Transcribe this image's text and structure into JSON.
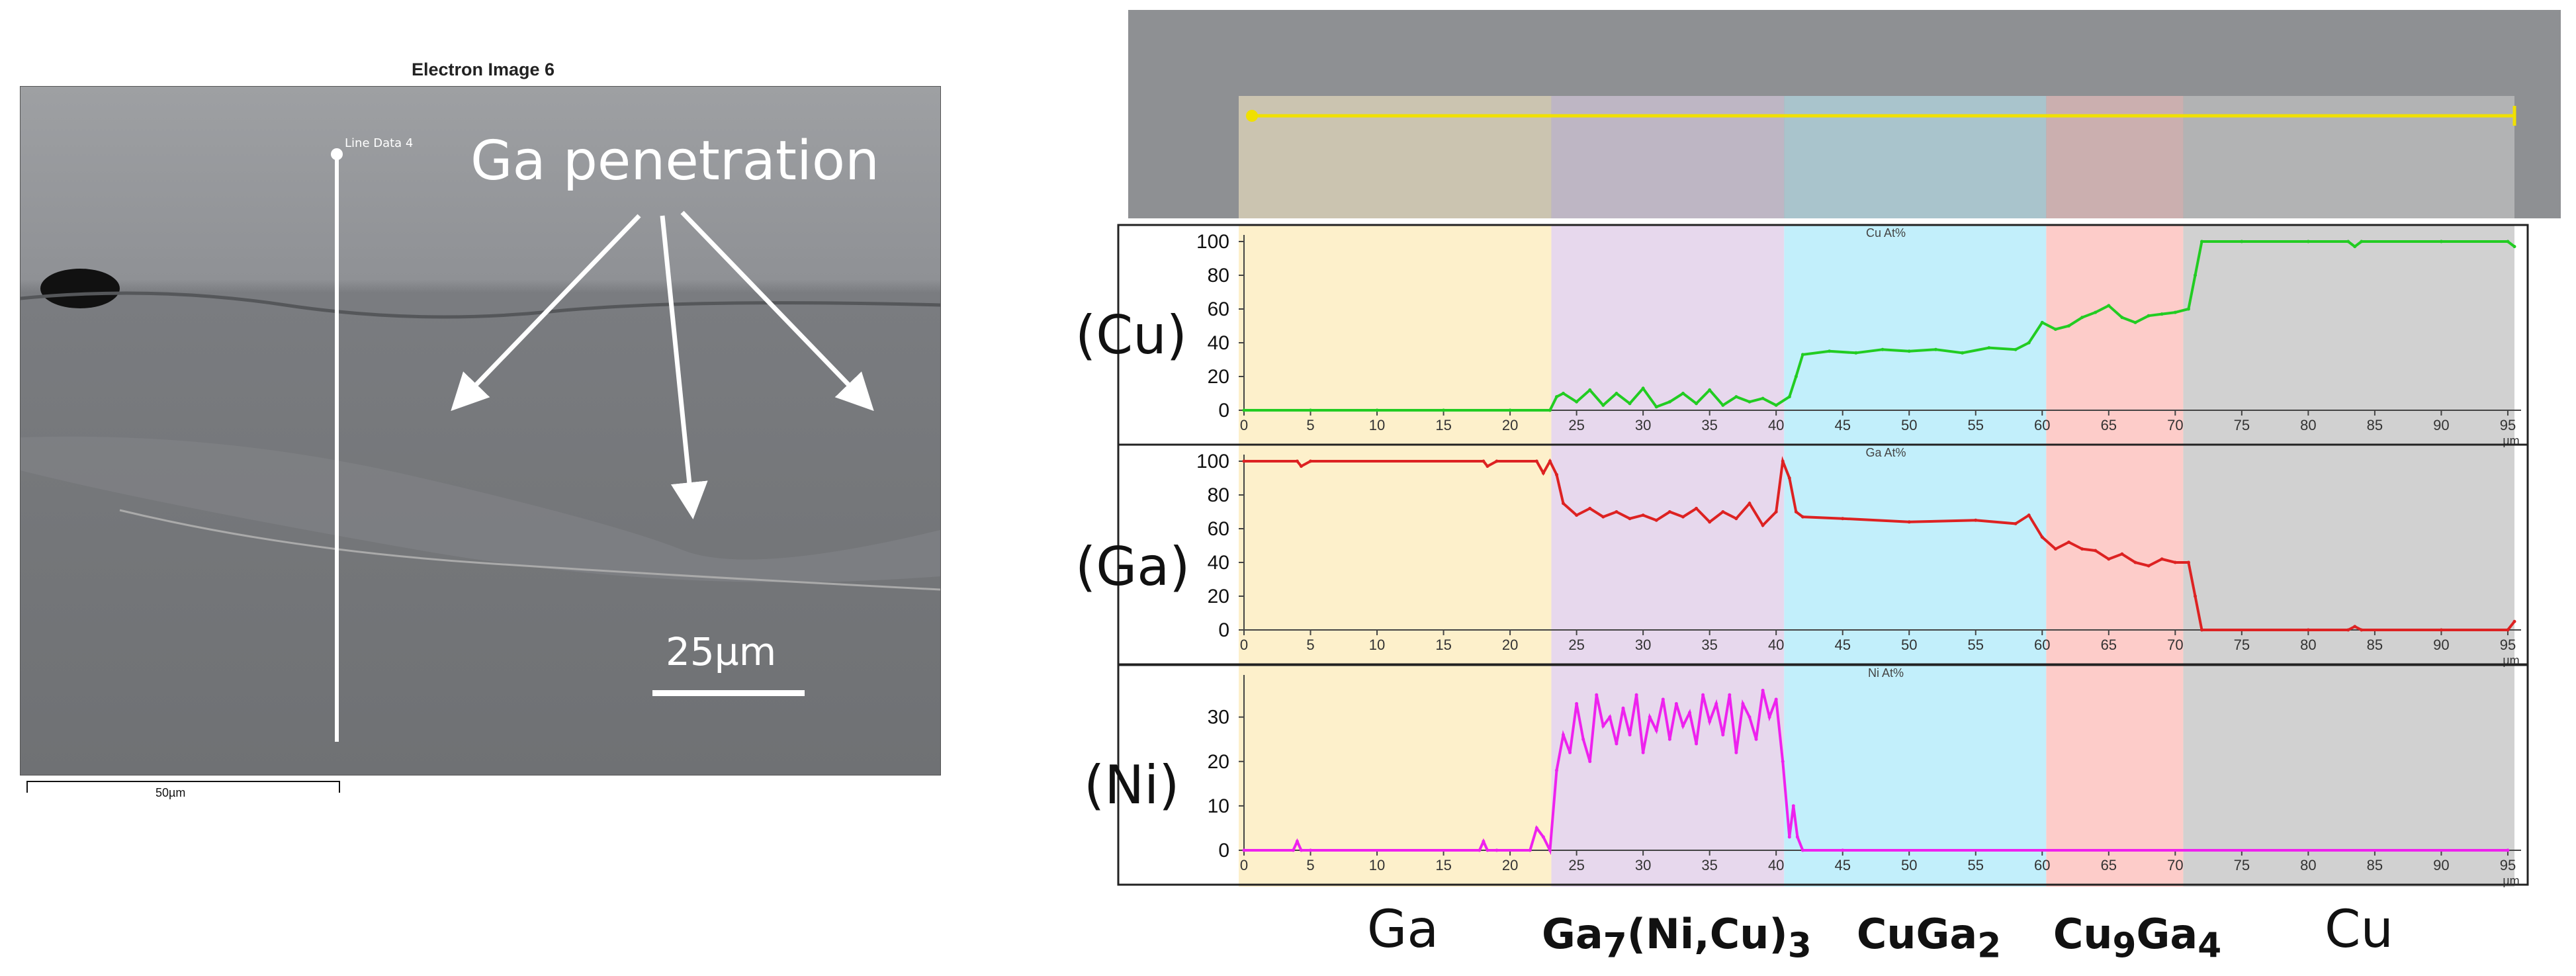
{
  "left_panel": {
    "title": "Electron Image 6",
    "line_label": "Line Data 4",
    "annotation": "Ga penetration",
    "scale_label": "25µm",
    "scale_bar_label": "50µm"
  },
  "phase_labels": [
    "Ga",
    "Ga7(Ni,Cu)3",
    "CuGa2",
    "Cu9Ga4",
    "Cu"
  ],
  "phase_label_parts": [
    {
      "main": "Ga",
      "sub1": "",
      "mid": "",
      "sub2": ""
    },
    {
      "main": "Ga",
      "sub1": "7",
      "mid": "(Ni,Cu)",
      "sub2": "3"
    },
    {
      "main": "CuGa",
      "sub1": "2",
      "mid": "",
      "sub2": ""
    },
    {
      "main": "Cu",
      "sub1": "9",
      "mid": "Ga",
      "sub2": "4"
    },
    {
      "main": "Cu",
      "sub1": "",
      "mid": "",
      "sub2": ""
    }
  ],
  "phase_colors": [
    "#fdefc8",
    "#e6d6ec",
    "#bfeefb",
    "#fdc9c6",
    "#cfcfcf"
  ],
  "phase_boundaries_um": [
    0,
    23.5,
    41,
    60.7,
    71,
    95.5
  ],
  "chart_data": [
    {
      "type": "line",
      "title": "Cu At%",
      "ylabel": "(Cu)",
      "xlabel": "µm",
      "color": "#22cc22",
      "ylim": [
        0,
        100
      ],
      "yticks": [
        0,
        20,
        40,
        60,
        80,
        100
      ],
      "xticks": [
        0,
        5,
        10,
        15,
        20,
        25,
        30,
        35,
        40,
        45,
        50,
        55,
        60,
        65,
        70,
        75,
        80,
        85,
        90,
        95
      ],
      "x": [
        0,
        5,
        10,
        15,
        20,
        23,
        23.5,
        24,
        25,
        26,
        27,
        28,
        29,
        30,
        31,
        32,
        33,
        34,
        35,
        36,
        37,
        38,
        39,
        40,
        41,
        41.5,
        42,
        44,
        46,
        48,
        50,
        52,
        54,
        56,
        58,
        59,
        60,
        61,
        62,
        63,
        64,
        65,
        66,
        67,
        68,
        69,
        70,
        71,
        71.5,
        72,
        75,
        80,
        83,
        83.5,
        84,
        90,
        95,
        95.5
      ],
      "y": [
        0,
        0,
        0,
        0,
        0,
        0,
        8,
        10,
        5,
        12,
        3,
        10,
        4,
        13,
        2,
        5,
        10,
        4,
        12,
        3,
        8,
        5,
        7,
        3,
        8,
        20,
        33,
        35,
        34,
        36,
        35,
        36,
        34,
        37,
        36,
        40,
        52,
        48,
        50,
        55,
        58,
        62,
        55,
        52,
        56,
        57,
        58,
        60,
        80,
        100,
        100,
        100,
        100,
        97,
        100,
        100,
        100,
        97
      ]
    },
    {
      "type": "line",
      "title": "Ga At%",
      "ylabel": "(Ga)",
      "xlabel": "µm",
      "color": "#dd2222",
      "ylim": [
        0,
        100
      ],
      "yticks": [
        0,
        20,
        40,
        60,
        80,
        100
      ],
      "xticks": [
        0,
        5,
        10,
        15,
        20,
        25,
        30,
        35,
        40,
        45,
        50,
        55,
        60,
        65,
        70,
        75,
        80,
        85,
        90,
        95
      ],
      "x": [
        0,
        4,
        4.3,
        5,
        18,
        18.3,
        19,
        22,
        22.5,
        23,
        23.5,
        24,
        25,
        26,
        27,
        28,
        29,
        30,
        31,
        32,
        33,
        34,
        35,
        36,
        37,
        38,
        39,
        40,
        40.5,
        41,
        41.5,
        42,
        45,
        50,
        55,
        58,
        59,
        60,
        61,
        62,
        63,
        64,
        65,
        66,
        67,
        68,
        69,
        70,
        71,
        71.5,
        72,
        80,
        83,
        83.5,
        84,
        90,
        95,
        95.5
      ],
      "y": [
        100,
        100,
        97,
        100,
        100,
        97,
        100,
        100,
        93,
        100,
        92,
        75,
        68,
        72,
        67,
        70,
        66,
        68,
        65,
        70,
        67,
        72,
        64,
        70,
        66,
        75,
        62,
        70,
        100,
        90,
        70,
        67,
        66,
        64,
        65,
        63,
        68,
        55,
        48,
        52,
        48,
        47,
        42,
        45,
        40,
        38,
        42,
        40,
        40,
        20,
        0,
        0,
        0,
        2,
        0,
        0,
        0,
        5
      ]
    },
    {
      "type": "line",
      "title": "Ni At%",
      "ylabel": "(Ni)",
      "xlabel": "µm",
      "color": "#ee22ee",
      "ylim": [
        0,
        38
      ],
      "yticks": [
        0,
        10,
        20,
        30
      ],
      "xticks": [
        0,
        5,
        10,
        15,
        20,
        25,
        30,
        35,
        40,
        45,
        50,
        55,
        60,
        65,
        70,
        75,
        80,
        85,
        90,
        95
      ],
      "x": [
        0,
        3.7,
        4,
        4.3,
        5,
        17.7,
        18,
        18.3,
        19,
        21.5,
        22,
        22.5,
        23,
        23.5,
        24,
        24.5,
        25,
        25.5,
        26,
        26.5,
        27,
        27.5,
        28,
        28.5,
        29,
        29.5,
        30,
        30.5,
        31,
        31.5,
        32,
        32.5,
        33,
        33.5,
        34,
        34.5,
        35,
        35.5,
        36,
        36.5,
        37,
        37.5,
        38,
        38.5,
        39,
        39.5,
        40,
        40.5,
        41,
        41.3,
        41.6,
        42,
        45,
        95
      ],
      "y": [
        0,
        0,
        2,
        0,
        0,
        0,
        2,
        0,
        0,
        0,
        5,
        3,
        0,
        18,
        26,
        22,
        33,
        25,
        20,
        35,
        28,
        30,
        24,
        32,
        26,
        35,
        22,
        30,
        27,
        34,
        25,
        33,
        28,
        31,
        24,
        35,
        29,
        33,
        26,
        35,
        22,
        33,
        30,
        25,
        36,
        30,
        34,
        20,
        3,
        10,
        3,
        0,
        0,
        0
      ]
    }
  ]
}
